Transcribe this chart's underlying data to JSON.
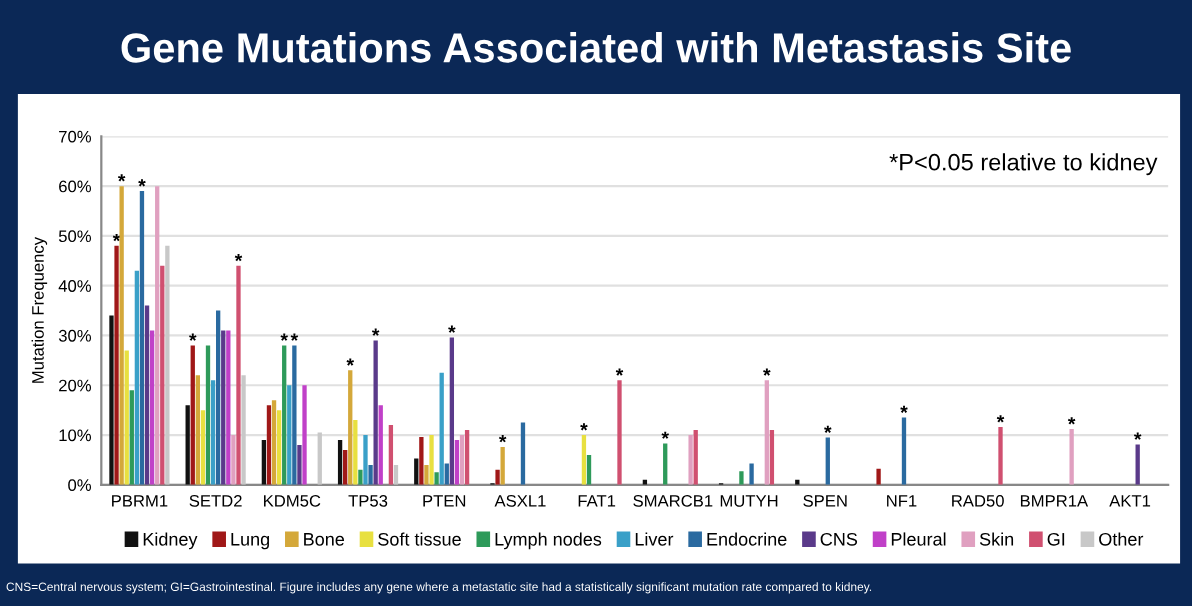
{
  "chart_data": {
    "type": "bar",
    "title": "Gene Mutations Associated with Metastasis Site",
    "ylabel": "Mutation Frequency",
    "categories": [
      "PBRM1",
      "SETD2",
      "KDM5C",
      "TP53",
      "PTEN",
      "ASXL1",
      "FAT1",
      "SMARCB1",
      "MUTYH",
      "SPEN",
      "NF1",
      "RAD50",
      "BMPR1A",
      "AKT1"
    ],
    "series": [
      {
        "name": "Kidney",
        "color": "#111111",
        "values": [
          34,
          16,
          9,
          9,
          5.3,
          0.3,
          null,
          1,
          0.3,
          1,
          null,
          null,
          null,
          null
        ],
        "value_labels": [
          null,
          null,
          null,
          null,
          null,
          null,
          null,
          null,
          null,
          null,
          null,
          null,
          null,
          null
        ]
      },
      {
        "name": "Lung",
        "color": "#a01818",
        "values": [
          48,
          28,
          16,
          7,
          9.6,
          3,
          null,
          null,
          null,
          null,
          3.2,
          null,
          null,
          null
        ],
        "value_labels": [
          "*",
          "*",
          null,
          null,
          null,
          null,
          null,
          null,
          null,
          null,
          null,
          null,
          null,
          null
        ]
      },
      {
        "name": "Bone",
        "color": "#d4a83a",
        "values": [
          60,
          22,
          17,
          23,
          4,
          7.6,
          null,
          null,
          null,
          null,
          null,
          null,
          null,
          null
        ],
        "value_labels": [
          "*",
          null,
          null,
          "*",
          null,
          "*",
          null,
          null,
          null,
          null,
          null,
          null,
          null,
          null
        ]
      },
      {
        "name": "Soft tissue",
        "color": "#e8e040",
        "values": [
          27,
          15,
          15,
          13,
          10,
          null,
          10,
          null,
          null,
          null,
          null,
          null,
          null,
          null
        ],
        "value_labels": [
          null,
          null,
          null,
          null,
          null,
          null,
          "*",
          null,
          null,
          null,
          null,
          null,
          null,
          null
        ]
      },
      {
        "name": "Lymph nodes",
        "color": "#2e9a5a",
        "values": [
          19,
          28,
          28,
          3,
          2.5,
          null,
          6,
          8.3,
          2.7,
          null,
          null,
          null,
          null,
          null
        ],
        "value_labels": [
          null,
          null,
          "*",
          null,
          null,
          null,
          null,
          "*",
          null,
          null,
          null,
          null,
          null,
          null
        ]
      },
      {
        "name": "Liver",
        "color": "#3aa0c8",
        "values": [
          43,
          21,
          20,
          10,
          22.5,
          null,
          null,
          null,
          null,
          null,
          null,
          null,
          null,
          null
        ],
        "value_labels": [
          null,
          null,
          null,
          null,
          null,
          null,
          null,
          null,
          null,
          null,
          null,
          null,
          null,
          null
        ]
      },
      {
        "name": "Endocrine",
        "color": "#2a6aa0",
        "values": [
          59,
          35,
          28,
          4,
          4.3,
          12.5,
          null,
          null,
          4.3,
          9.5,
          13.5,
          null,
          null,
          null
        ],
        "value_labels": [
          "*",
          null,
          "*",
          null,
          null,
          null,
          null,
          null,
          null,
          "*",
          "*",
          null,
          null,
          null
        ]
      },
      {
        "name": "CNS",
        "color": "#5a3a8a",
        "values": [
          36,
          31,
          8,
          29,
          29.6,
          null,
          null,
          null,
          null,
          null,
          null,
          null,
          null,
          8.1
        ],
        "value_labels": [
          null,
          null,
          null,
          "*",
          "*",
          null,
          null,
          null,
          null,
          null,
          null,
          null,
          null,
          "*"
        ]
      },
      {
        "name": "Pleural",
        "color": "#c040c8",
        "values": [
          31,
          31,
          20,
          16,
          9,
          null,
          null,
          null,
          null,
          null,
          null,
          null,
          null,
          null
        ],
        "value_labels": [
          null,
          null,
          null,
          null,
          null,
          null,
          null,
          null,
          null,
          null,
          null,
          null,
          null,
          null
        ]
      },
      {
        "name": "Skin",
        "color": "#e0a0c0",
        "values": [
          60,
          10,
          null,
          null,
          10,
          null,
          null,
          10,
          21,
          null,
          null,
          null,
          11.2,
          null
        ],
        "value_labels": [
          null,
          null,
          null,
          null,
          null,
          null,
          null,
          null,
          "*",
          null,
          null,
          null,
          "*",
          null
        ]
      },
      {
        "name": "GI",
        "color": "#d05070",
        "values": [
          44,
          44,
          null,
          12,
          11,
          null,
          21,
          11,
          11,
          null,
          null,
          11.6,
          null,
          null
        ],
        "value_labels": [
          null,
          "*",
          null,
          null,
          null,
          null,
          "*",
          null,
          null,
          null,
          null,
          "*",
          null,
          null
        ]
      },
      {
        "name": "Other",
        "color": "#c8c8c8",
        "values": [
          48,
          22,
          10.5,
          4,
          null,
          null,
          null,
          null,
          null,
          null,
          null,
          null,
          null,
          null
        ],
        "value_labels": [
          null,
          null,
          null,
          null,
          null,
          null,
          null,
          null,
          null,
          null,
          null,
          null,
          null,
          null
        ]
      }
    ],
    "ylim": [
      0,
      70
    ],
    "yticks": [
      {
        "value": 0,
        "label": "0%"
      },
      {
        "value": 10,
        "label": "10%"
      },
      {
        "value": 20,
        "label": "20%"
      },
      {
        "value": 30,
        "label": "30%"
      },
      {
        "value": 40,
        "label": "40%"
      },
      {
        "value": 50,
        "label": "50%"
      },
      {
        "value": 60,
        "label": "60%"
      },
      {
        "value": 70,
        "label": "70%"
      }
    ],
    "grid": "y",
    "legend": "bottom",
    "annotations": [
      "*P<0.05 relative to kidney",
      "CNS=Central nervous system; GI=Gastrointestinal. Figure includes any gene where a metastatic site had a statistically significant mutation rate compared to kidney."
    ]
  }
}
